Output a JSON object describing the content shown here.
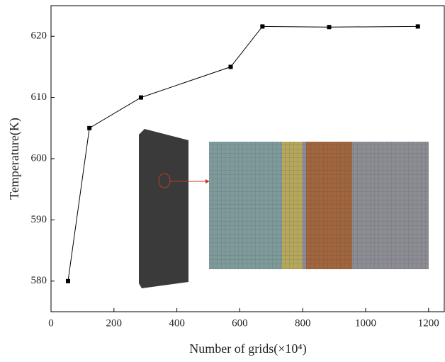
{
  "chart_data": {
    "type": "line",
    "x_label": "Number of grids(×10⁴)",
    "y_label": "Temperature(K)",
    "x": [
      54,
      122,
      286,
      571,
      672,
      884,
      1166
    ],
    "series": [
      {
        "color": "#000000",
        "values": [
          580,
          605,
          610,
          615,
          621.6,
          621.5,
          621.6
        ]
      }
    ],
    "xlim": [
      0,
      1250
    ],
    "ylim": [
      575,
      625
    ],
    "xticks": [
      0,
      200,
      400,
      600,
      800,
      1000,
      1200
    ],
    "yticks": [
      580,
      590,
      600,
      610,
      620
    ]
  }
}
